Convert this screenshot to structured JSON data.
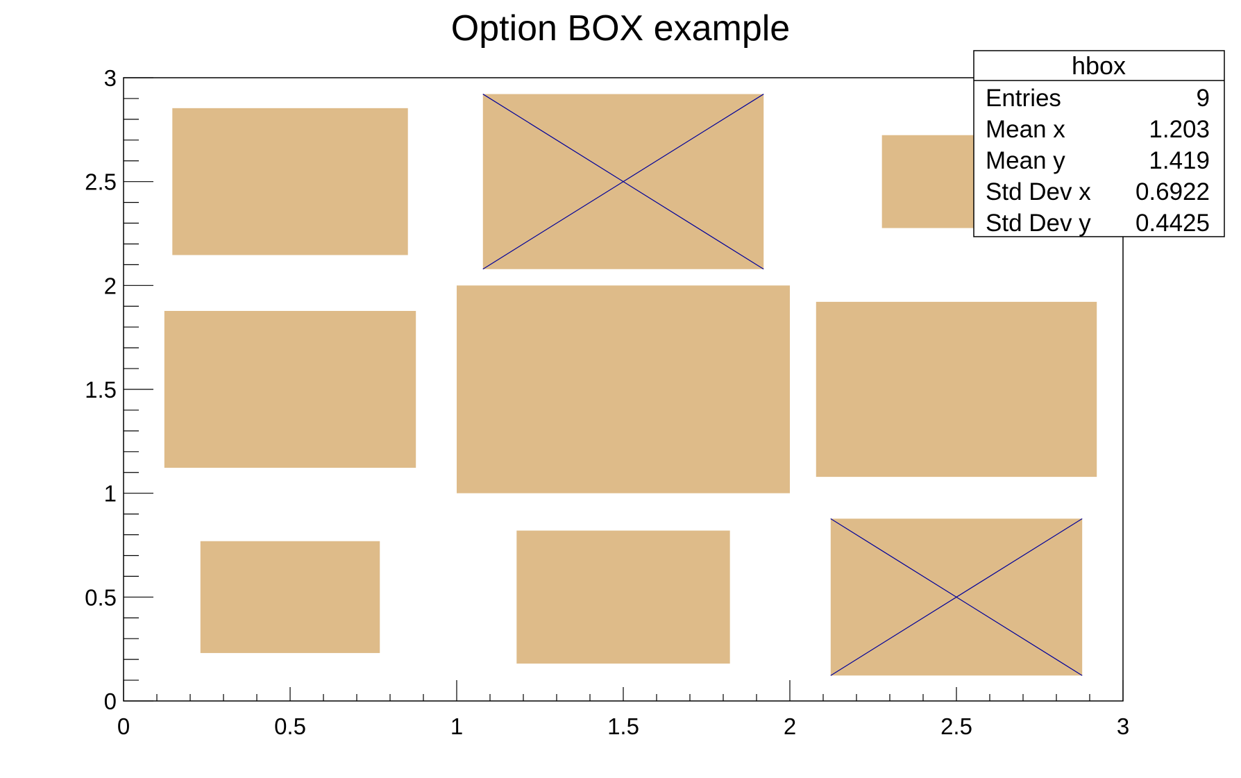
{
  "chart_data": {
    "type": "heatmap",
    "title": "Option BOX example",
    "xlabel": "",
    "ylabel": "",
    "xlim": [
      0,
      3
    ],
    "ylim": [
      0,
      3
    ],
    "x_ticks": [
      "0",
      "0.5",
      "1",
      "1.5",
      "2",
      "2.5",
      "3"
    ],
    "y_ticks": [
      "0",
      "0.5",
      "1",
      "1.5",
      "2",
      "2.5",
      "3"
    ],
    "bins": {
      "x_edges": [
        0,
        1,
        2,
        3
      ],
      "y_edges": [
        0,
        1,
        2,
        3
      ]
    },
    "box_fill_color": "#debb89",
    "cross_color": "#000099",
    "boxes": [
      {
        "x": 0.5,
        "y": 0.5,
        "content": 0.29,
        "crossed": false
      },
      {
        "x": 1.5,
        "y": 0.5,
        "content": 0.41,
        "crossed": false
      },
      {
        "x": 2.5,
        "y": 0.5,
        "content": 0.57,
        "crossed": true
      },
      {
        "x": 0.5,
        "y": 1.5,
        "content": 0.57,
        "crossed": false
      },
      {
        "x": 1.5,
        "y": 1.5,
        "content": 1.0,
        "crossed": false
      },
      {
        "x": 2.5,
        "y": 1.5,
        "content": 0.71,
        "crossed": false
      },
      {
        "x": 0.5,
        "y": 2.5,
        "content": 0.5,
        "crossed": false
      },
      {
        "x": 1.5,
        "y": 2.5,
        "content": 0.71,
        "crossed": true
      },
      {
        "x": 2.5,
        "y": 2.5,
        "content": 0.2,
        "crossed": false
      }
    ],
    "grid": false,
    "legend": "none"
  },
  "stats_box": {
    "title": "hbox",
    "rows": [
      {
        "label": "Entries",
        "value": "9"
      },
      {
        "label": "Mean x",
        "value": "1.203"
      },
      {
        "label": "Mean y",
        "value": "1.419"
      },
      {
        "label": "Std Dev x",
        "value": "0.6922"
      },
      {
        "label": "Std Dev y",
        "value": "0.4425"
      }
    ]
  }
}
